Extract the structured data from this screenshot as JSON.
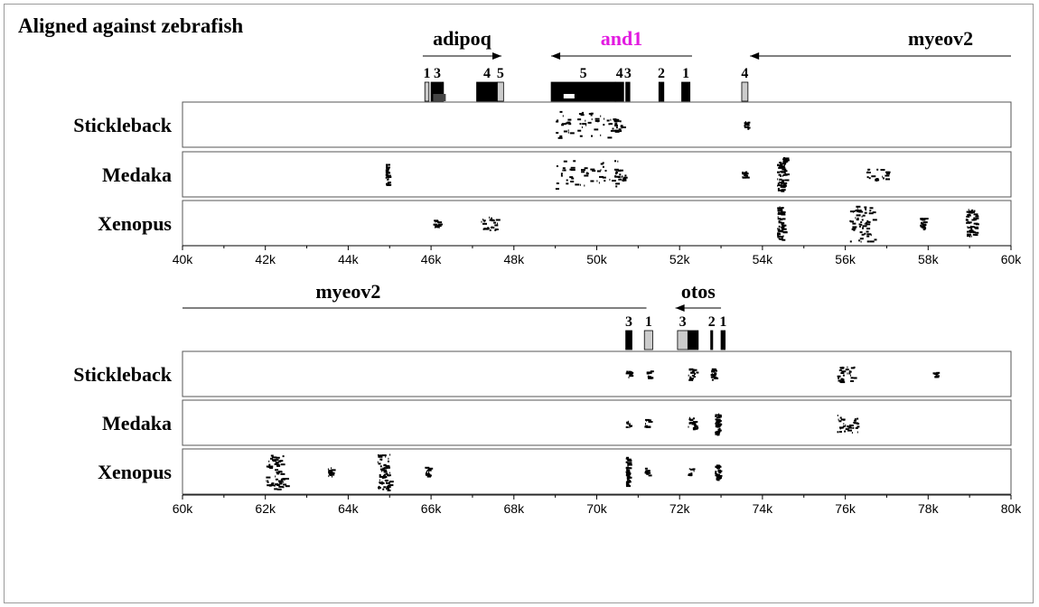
{
  "title": "Aligned against zebrafish",
  "highlight_color": "#e21ae0",
  "panels": [
    {
      "axis": {
        "min": 40,
        "max": 60,
        "ticks": [
          "40k",
          "42k",
          "44k",
          "46k",
          "48k",
          "50k",
          "52k",
          "54k",
          "56k",
          "58k",
          "60k"
        ]
      },
      "genes": [
        {
          "name": "adipoq",
          "direction": "right",
          "highlight": false,
          "start": 45.8,
          "end": 47.7
        },
        {
          "name": "and1",
          "direction": "left",
          "highlight": true,
          "start": 48.9,
          "end": 52.3
        },
        {
          "name": "myeov2",
          "direction": "left",
          "highlight": false,
          "start": 53.7,
          "end": 60.0
        }
      ],
      "exons": [
        {
          "label": "1",
          "start": 45.85,
          "end": 45.95,
          "fill": "#cccccc"
        },
        {
          "label": "3",
          "start": 46.0,
          "end": 46.3,
          "fill": "#000000"
        },
        {
          "label": "4",
          "start": 47.1,
          "end": 47.6,
          "fill": "#000000"
        },
        {
          "label": "5",
          "start": 47.6,
          "end": 47.75,
          "fill": "#cccccc"
        },
        {
          "label": "5",
          "start": 48.9,
          "end": 50.45,
          "fill": "#000000"
        },
        {
          "label": "4",
          "start": 50.45,
          "end": 50.65,
          "fill": "#000000"
        },
        {
          "label": "3",
          "start": 50.7,
          "end": 50.8,
          "fill": "#000000"
        },
        {
          "label": "2",
          "start": 51.5,
          "end": 51.62,
          "fill": "#000000"
        },
        {
          "label": "1",
          "start": 52.05,
          "end": 52.25,
          "fill": "#000000"
        },
        {
          "label": "4",
          "start": 53.5,
          "end": 53.65,
          "fill": "#cccccc"
        }
      ],
      "tracks": [
        {
          "species": "Stickleback",
          "features": [
            {
              "pos": 49.0,
              "density": 0.75,
              "width": 1.3
            },
            {
              "pos": 50.3,
              "density": 0.35,
              "width": 0.3
            },
            {
              "pos": 53.55,
              "density": 0.15,
              "width": 0.1
            }
          ]
        },
        {
          "species": "Medaka",
          "features": [
            {
              "pos": 44.9,
              "density": 0.55,
              "width": 0.05
            },
            {
              "pos": 49.0,
              "density": 0.75,
              "width": 1.5
            },
            {
              "pos": 50.4,
              "density": 0.3,
              "width": 0.3
            },
            {
              "pos": 53.5,
              "density": 0.15,
              "width": 0.1
            },
            {
              "pos": 54.35,
              "density": 0.95,
              "width": 0.2
            },
            {
              "pos": 56.5,
              "density": 0.3,
              "width": 0.5
            }
          ]
        },
        {
          "species": "Xenopus",
          "features": [
            {
              "pos": 46.05,
              "density": 0.2,
              "width": 0.15
            },
            {
              "pos": 47.2,
              "density": 0.35,
              "width": 0.4
            },
            {
              "pos": 54.35,
              "density": 0.9,
              "width": 0.15
            },
            {
              "pos": 56.1,
              "density": 0.95,
              "width": 0.6
            },
            {
              "pos": 57.8,
              "density": 0.3,
              "width": 0.1
            },
            {
              "pos": 58.9,
              "density": 0.75,
              "width": 0.25
            }
          ]
        }
      ]
    },
    {
      "axis": {
        "min": 60,
        "max": 80,
        "ticks": [
          "60k",
          "62k",
          "64k",
          "66k",
          "68k",
          "70k",
          "72k",
          "74k",
          "76k",
          "78k",
          "80k"
        ]
      },
      "genes": [
        {
          "name": "myeov2",
          "direction": "none",
          "highlight": false,
          "start": 60.0,
          "end": 71.2
        },
        {
          "name": "otos",
          "direction": "left",
          "highlight": false,
          "start": 71.9,
          "end": 73.0
        }
      ],
      "exons": [
        {
          "label": "3",
          "start": 70.7,
          "end": 70.85,
          "fill": "#000000"
        },
        {
          "label": "1",
          "start": 71.15,
          "end": 71.35,
          "fill": "#cccccc"
        },
        {
          "label": "3",
          "start": 71.95,
          "end": 72.2,
          "fill": "#cccccc"
        },
        {
          "label": "",
          "start": 72.2,
          "end": 72.45,
          "fill": "#000000"
        },
        {
          "label": "2",
          "start": 72.75,
          "end": 72.8,
          "fill": "#000000"
        },
        {
          "label": "1",
          "start": 73.0,
          "end": 73.1,
          "fill": "#000000"
        }
      ],
      "tracks": [
        {
          "species": "Stickleback",
          "features": [
            {
              "pos": 70.7,
              "density": 0.1,
              "width": 0.1
            },
            {
              "pos": 71.2,
              "density": 0.1,
              "width": 0.1
            },
            {
              "pos": 72.2,
              "density": 0.3,
              "width": 0.2
            },
            {
              "pos": 72.75,
              "density": 0.3,
              "width": 0.1
            },
            {
              "pos": 75.8,
              "density": 0.4,
              "width": 0.4
            },
            {
              "pos": 78.1,
              "density": 0.1,
              "width": 0.1
            }
          ]
        },
        {
          "species": "Medaka",
          "features": [
            {
              "pos": 70.7,
              "density": 0.1,
              "width": 0.1
            },
            {
              "pos": 71.15,
              "density": 0.1,
              "width": 0.1
            },
            {
              "pos": 72.2,
              "density": 0.3,
              "width": 0.2
            },
            {
              "pos": 72.85,
              "density": 0.6,
              "width": 0.1
            },
            {
              "pos": 75.8,
              "density": 0.5,
              "width": 0.5
            }
          ]
        },
        {
          "species": "Xenopus",
          "features": [
            {
              "pos": 70.7,
              "density": 0.8,
              "width": 0.05
            },
            {
              "pos": 71.15,
              "density": 0.1,
              "width": 0.1
            },
            {
              "pos": 72.2,
              "density": 0.1,
              "width": 0.2
            },
            {
              "pos": 72.85,
              "density": 0.4,
              "width": 0.1
            },
            {
              "pos": 62.0,
              "density": 0.95,
              "width": 0.5
            },
            {
              "pos": 63.5,
              "density": 0.25,
              "width": 0.1
            },
            {
              "pos": 64.7,
              "density": 0.95,
              "width": 0.3
            },
            {
              "pos": 65.85,
              "density": 0.25,
              "width": 0.1
            }
          ]
        }
      ]
    }
  ]
}
